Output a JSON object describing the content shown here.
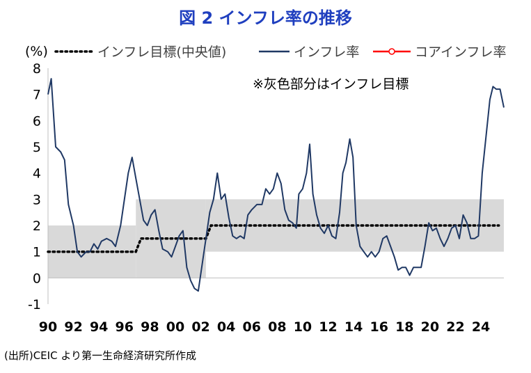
{
  "title": "図 2  インフレ率の推移",
  "source": "(出所)CEIC より第一生命経済研究所作成",
  "chart_data": {
    "type": "line",
    "unit_label": "(%)",
    "annotation": "※灰色部分はインフレ目標",
    "ylim": [
      -1,
      8
    ],
    "yticks": [
      -1,
      0,
      1,
      2,
      3,
      4,
      5,
      6,
      7,
      8
    ],
    "xlim": [
      1990,
      2025.8
    ],
    "xticks": [
      1990,
      1992,
      1994,
      1996,
      1998,
      2000,
      2002,
      2004,
      2006,
      2008,
      2010,
      2012,
      2014,
      2016,
      2018,
      2020,
      2022,
      2024
    ],
    "xtick_labels": [
      "90",
      "92",
      "94",
      "96",
      "98",
      "00",
      "02",
      "04",
      "06",
      "08",
      "10",
      "12",
      "14",
      "16",
      "18",
      "20",
      "22",
      "24"
    ],
    "grid": false,
    "legend_position": "top",
    "target_band": [
      {
        "from": 1990,
        "to": 1996.9,
        "low": 0,
        "high": 2
      },
      {
        "from": 1996.9,
        "to": 2002.4,
        "low": 0,
        "high": 3
      },
      {
        "from": 2002.4,
        "to": 2025.8,
        "low": 1,
        "high": 3
      }
    ],
    "colors": {
      "band": "#d9d9d9",
      "inflation": "#1f3864",
      "core": "#ff0000",
      "target": "#000000",
      "title": "#1f3fbf"
    },
    "series": [
      {
        "name": "インフレ目標(中央値)",
        "style": "dotted",
        "points": [
          [
            1990,
            1
          ],
          [
            1996.9,
            1
          ],
          [
            1997.3,
            1.5
          ],
          [
            2002.4,
            1.5
          ],
          [
            2002.8,
            2
          ],
          [
            2025.4,
            2
          ]
        ]
      },
      {
        "name": "インフレ率",
        "style": "solid",
        "points": [
          [
            1990,
            7
          ],
          [
            1990.25,
            7.6
          ],
          [
            1990.6,
            5
          ],
          [
            1991,
            4.8
          ],
          [
            1991.3,
            4.5
          ],
          [
            1991.6,
            2.8
          ],
          [
            1992,
            2
          ],
          [
            1992.3,
            1
          ],
          [
            1992.6,
            0.8
          ],
          [
            1993,
            1
          ],
          [
            1993.3,
            1
          ],
          [
            1993.6,
            1.3
          ],
          [
            1993.9,
            1.1
          ],
          [
            1994.2,
            1.4
          ],
          [
            1994.6,
            1.5
          ],
          [
            1995,
            1.4
          ],
          [
            1995.3,
            1.2
          ],
          [
            1995.7,
            2
          ],
          [
            1996,
            3
          ],
          [
            1996.3,
            4
          ],
          [
            1996.6,
            4.6
          ],
          [
            1996.9,
            3.8
          ],
          [
            1997.2,
            3
          ],
          [
            1997.5,
            2.2
          ],
          [
            1997.8,
            2
          ],
          [
            1998.1,
            2.4
          ],
          [
            1998.4,
            2.6
          ],
          [
            1998.7,
            1.8
          ],
          [
            1999,
            1.1
          ],
          [
            1999.4,
            1
          ],
          [
            1999.7,
            0.8
          ],
          [
            2000,
            1.2
          ],
          [
            2000.3,
            1.6
          ],
          [
            2000.6,
            1.8
          ],
          [
            2000.9,
            0.4
          ],
          [
            2001.2,
            -0.1
          ],
          [
            2001.5,
            -0.4
          ],
          [
            2001.8,
            -0.5
          ],
          [
            2002.1,
            0.5
          ],
          [
            2002.4,
            1.5
          ],
          [
            2002.7,
            2.5
          ],
          [
            2003,
            3
          ],
          [
            2003.3,
            4
          ],
          [
            2003.6,
            3
          ],
          [
            2003.9,
            3.2
          ],
          [
            2004.2,
            2.3
          ],
          [
            2004.5,
            1.6
          ],
          [
            2004.8,
            1.5
          ],
          [
            2005.1,
            1.6
          ],
          [
            2005.4,
            1.5
          ],
          [
            2005.7,
            2.4
          ],
          [
            2006,
            2.6
          ],
          [
            2006.4,
            2.8
          ],
          [
            2006.8,
            2.8
          ],
          [
            2007.1,
            3.4
          ],
          [
            2007.4,
            3.2
          ],
          [
            2007.7,
            3.4
          ],
          [
            2008,
            4
          ],
          [
            2008.3,
            3.6
          ],
          [
            2008.6,
            2.6
          ],
          [
            2008.9,
            2.2
          ],
          [
            2009.2,
            2.1
          ],
          [
            2009.5,
            1.9
          ],
          [
            2009.7,
            3.2
          ],
          [
            2010,
            3.4
          ],
          [
            2010.3,
            4
          ],
          [
            2010.55,
            5.1
          ],
          [
            2010.8,
            3.2
          ],
          [
            2011.1,
            2.4
          ],
          [
            2011.4,
            1.9
          ],
          [
            2011.7,
            1.7
          ],
          [
            2012,
            2
          ],
          [
            2012.3,
            1.6
          ],
          [
            2012.6,
            1.5
          ],
          [
            2012.9,
            2.5
          ],
          [
            2013.15,
            4
          ],
          [
            2013.4,
            4.4
          ],
          [
            2013.7,
            5.3
          ],
          [
            2013.95,
            4.6
          ],
          [
            2014.2,
            2
          ],
          [
            2014.5,
            1.2
          ],
          [
            2014.8,
            1
          ],
          [
            2015.1,
            0.8
          ],
          [
            2015.4,
            1
          ],
          [
            2015.7,
            0.8
          ],
          [
            2016,
            1
          ],
          [
            2016.3,
            1.5
          ],
          [
            2016.6,
            1.6
          ],
          [
            2016.9,
            1.2
          ],
          [
            2017.2,
            0.8
          ],
          [
            2017.5,
            0.3
          ],
          [
            2017.8,
            0.4
          ],
          [
            2018.1,
            0.4
          ],
          [
            2018.4,
            0.1
          ],
          [
            2018.7,
            0.4
          ],
          [
            2019,
            0.4
          ],
          [
            2019.3,
            0.4
          ],
          [
            2019.6,
            1.2
          ],
          [
            2019.9,
            2.1
          ],
          [
            2020.2,
            1.8
          ],
          [
            2020.5,
            1.9
          ],
          [
            2020.8,
            1.5
          ],
          [
            2021.1,
            1.2
          ],
          [
            2021.4,
            1.5
          ],
          [
            2021.7,
            1.9
          ],
          [
            2022,
            2
          ],
          [
            2022.3,
            1.5
          ],
          [
            2022.6,
            2.4
          ],
          [
            2022.9,
            2.1
          ],
          [
            2023.2,
            1.5
          ],
          [
            2023.5,
            1.5
          ],
          [
            2023.8,
            1.6
          ],
          [
            2024.1,
            4
          ],
          [
            2024.4,
            5.4
          ],
          [
            2024.7,
            6.8
          ],
          [
            2024.95,
            7.3
          ],
          [
            2025.2,
            7.2
          ],
          [
            2025.5,
            7.2
          ],
          [
            2025.8,
            6.5
          ]
        ]
      },
      {
        "name": "コアインフレ率",
        "style": "solid-marker",
        "points": []
      }
    ]
  }
}
